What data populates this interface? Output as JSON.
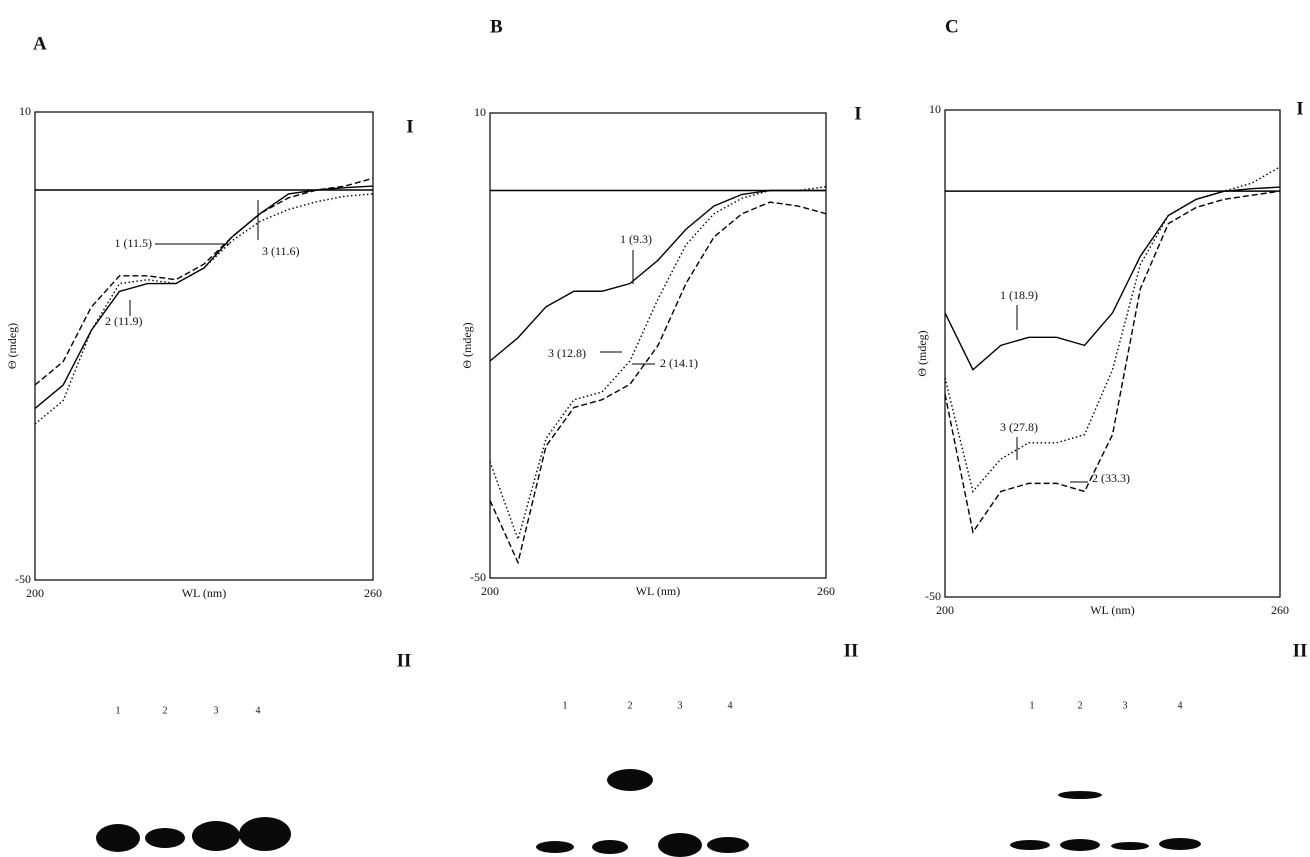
{
  "panels": [
    {
      "letter": "A",
      "spectrum_label": "I",
      "gel_label": "II",
      "gel_lanes": [
        "1",
        "2",
        "3",
        "4"
      ]
    },
    {
      "letter": "B",
      "spectrum_label": "I",
      "gel_label": "II",
      "gel_lanes": [
        "1",
        "2",
        "3",
        "4"
      ]
    },
    {
      "letter": "C",
      "spectrum_label": "I",
      "gel_label": "II",
      "gel_lanes": [
        "1",
        "2",
        "3",
        "4"
      ]
    }
  ],
  "chart_data": [
    {
      "type": "line",
      "xlabel": "WL (nm)",
      "ylabel": "Θ (mdeg)",
      "x": [
        200,
        205,
        210,
        215,
        220,
        225,
        230,
        235,
        240,
        245,
        250,
        255,
        260
      ],
      "xlim": [
        200,
        260
      ],
      "xticks": [
        200,
        260
      ],
      "ylim": [
        -50,
        10
      ],
      "yticks": [
        10,
        -50
      ],
      "series": [
        {
          "color": "#000000",
          "line_style": "solid",
          "values": [
            -28,
            -25,
            -18,
            -13,
            -12,
            -12,
            -10,
            -6,
            -3,
            -0.5,
            0,
            0.3,
            0.5
          ]
        },
        {
          "color": "#000000",
          "line_style": "dashed",
          "values": [
            -25,
            -22,
            -15,
            -11,
            -11,
            -11.5,
            -9.5,
            -6,
            -3,
            -1,
            0,
            0.5,
            1.5
          ]
        },
        {
          "color": "#000000",
          "line_style": "dotted",
          "values": [
            -30,
            -27,
            -18,
            -12,
            -11.5,
            -12,
            -10,
            -6.5,
            -4,
            -2.5,
            -1.5,
            -0.8,
            -0.5
          ]
        }
      ],
      "annotations": [
        "1 (11.5)",
        "3 (11.6)",
        "2 (11.9)"
      ]
    },
    {
      "type": "line",
      "xlabel": "WL (nm)",
      "ylabel": "Θ (mdeg)",
      "x": [
        200,
        205,
        210,
        215,
        220,
        225,
        230,
        235,
        240,
        245,
        250,
        255,
        260
      ],
      "xlim": [
        200,
        260
      ],
      "xticks": [
        200,
        260
      ],
      "ylim": [
        -50,
        10
      ],
      "yticks": [
        10,
        -50
      ],
      "series": [
        {
          "color": "#000000",
          "line_style": "solid",
          "values": [
            -22,
            -19,
            -15,
            -13,
            -13,
            -12,
            -9,
            -5,
            -2,
            -0.5,
            0,
            0,
            0
          ]
        },
        {
          "color": "#000000",
          "line_style": "dashed",
          "values": [
            -40,
            -48,
            -33,
            -28,
            -27,
            -25,
            -20,
            -12,
            -6,
            -3,
            -1.5,
            -2,
            -3
          ]
        },
        {
          "color": "#000000",
          "line_style": "dotted",
          "values": [
            -35,
            -45,
            -32,
            -27,
            -26,
            -22,
            -14,
            -7,
            -3,
            -1,
            0,
            0,
            0.5
          ]
        }
      ],
      "annotations": [
        "1 (9.3)",
        "3 (12.8)",
        "2 (14.1)"
      ]
    },
    {
      "type": "line",
      "xlabel": "WL (nm)",
      "ylabel": "Θ (mdeg)",
      "x": [
        200,
        205,
        210,
        215,
        220,
        225,
        230,
        235,
        240,
        245,
        250,
        255,
        260
      ],
      "xlim": [
        200,
        260
      ],
      "xticks": [
        200,
        260
      ],
      "ylim": [
        -50,
        10
      ],
      "yticks": [
        10,
        -50
      ],
      "series": [
        {
          "color": "#000000",
          "line_style": "solid",
          "values": [
            -15,
            -22,
            -19,
            -18,
            -18,
            -19,
            -15,
            -8,
            -3,
            -1,
            0,
            0.3,
            0.5
          ]
        },
        {
          "color": "#000000",
          "line_style": "dashed",
          "values": [
            -25,
            -42,
            -37,
            -36,
            -36,
            -37,
            -30,
            -12,
            -4,
            -2,
            -1,
            -0.5,
            0
          ]
        },
        {
          "color": "#000000",
          "line_style": "dotted",
          "values": [
            -23,
            -37,
            -33,
            -31,
            -31,
            -30,
            -22,
            -9,
            -3,
            -1,
            0,
            1,
            3
          ]
        }
      ],
      "annotations": [
        "1 (18.9)",
        "3 (27.8)",
        "2 (33.3)"
      ]
    }
  ]
}
